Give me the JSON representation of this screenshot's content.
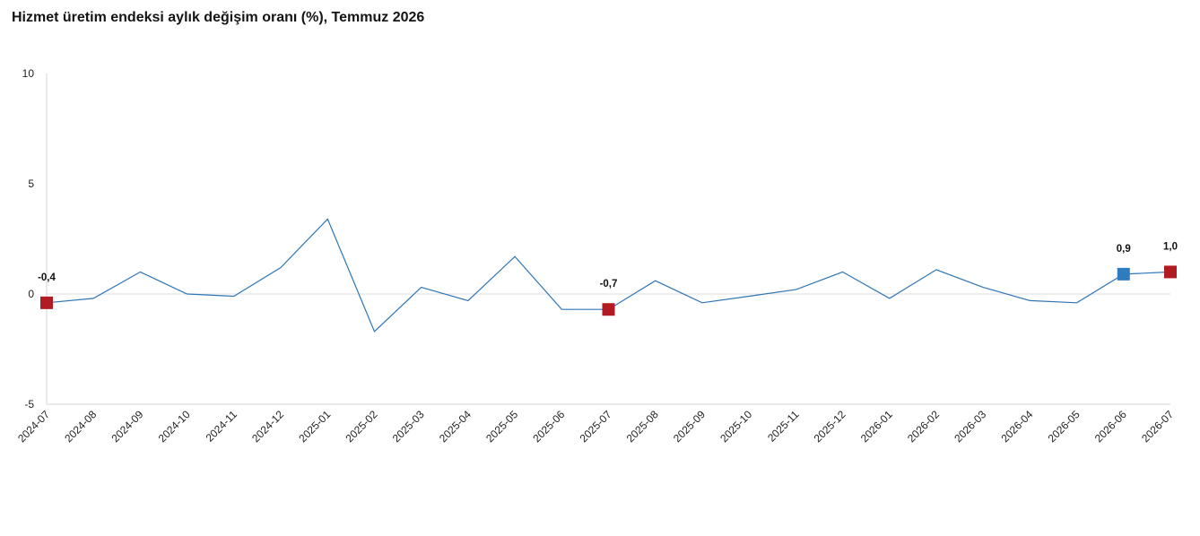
{
  "title": "Hizmet üretim endeksi aylık değişim oranı (%), Temmuz 2026",
  "colors": {
    "line": "#2e75b6",
    "marker_red": "#b01c22",
    "marker_blue": "#2e7bbf",
    "axis": "#d4d4d4",
    "zero_line": "#dcdcdc",
    "text": "#222222"
  },
  "chart_data": {
    "type": "line",
    "title": "Hizmet üretim endeksi aylık değişim oranı (%), Temmuz 2026",
    "xlabel": "",
    "ylabel": "",
    "ylim": [
      -5,
      10
    ],
    "yticks": [
      -5,
      0,
      5,
      10
    ],
    "ytick_labels": [
      "-5",
      "0",
      "5",
      "10"
    ],
    "grid": false,
    "categories": [
      "2024-07",
      "2024-08",
      "2024-09",
      "2024-10",
      "2024-11",
      "2024-12",
      "2025-01",
      "2025-02",
      "2025-03",
      "2025-04",
      "2025-05",
      "2025-06",
      "2025-07",
      "2025-08",
      "2025-09",
      "2025-10",
      "2025-11",
      "2025-12",
      "2026-01",
      "2026-02",
      "2026-03",
      "2026-04",
      "2026-05",
      "2026-06",
      "2026-07"
    ],
    "series": [
      {
        "values": [
          -0.4,
          -0.2,
          1.0,
          0.0,
          -0.1,
          1.2,
          3.4,
          -1.7,
          0.3,
          -0.3,
          1.7,
          -0.7,
          -0.7,
          0.6,
          -0.4,
          -0.1,
          0.2,
          1.0,
          -0.2,
          1.1,
          0.3,
          -0.3,
          -0.4,
          0.9,
          1.0
        ]
      }
    ],
    "highlighted_points": [
      {
        "category": "2024-07",
        "value": -0.4,
        "label": "-0,4",
        "color": "red"
      },
      {
        "category": "2025-07",
        "value": -0.7,
        "label": "-0,7",
        "color": "red"
      },
      {
        "category": "2026-06",
        "value": 0.9,
        "label": "0,9",
        "color": "blue"
      },
      {
        "category": "2026-07",
        "value": 1.0,
        "label": "1,0",
        "color": "red"
      }
    ]
  }
}
